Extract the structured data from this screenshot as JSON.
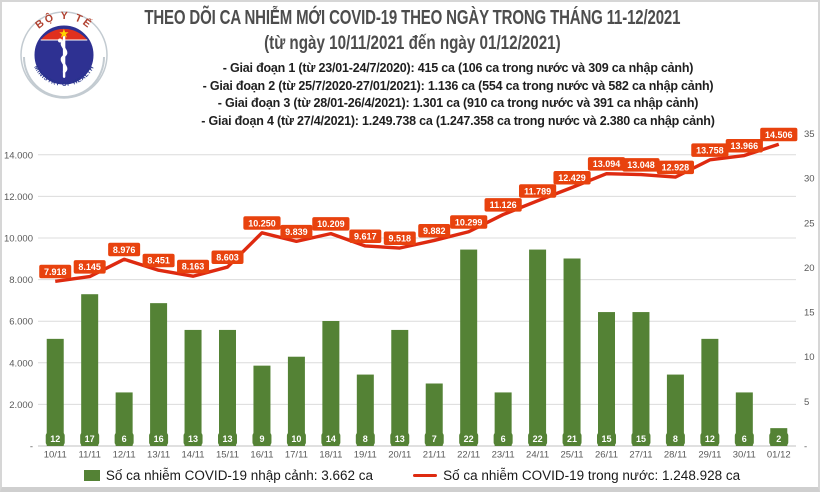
{
  "header": {
    "title": "THEO DÕI CA NHIỄM MỚI COVID-19 THEO NGÀY TRONG THÁNG 11-12/2021",
    "subtitle": "(từ ngày 10/11/2021 đến ngày 01/12/2021)",
    "phases": [
      "- Giai đoạn 1 (từ 23/01-24/7/2020): 415 ca (106 ca trong nước và 309 ca nhập cảnh)",
      "- Giai đoạn 2 (từ 25/7/2020-27/01/2021): 1.136 ca (554 ca trong nước và 582 ca nhập cảnh)",
      "- Giai đoạn 3 (từ 28/01-26/4/2021): 1.301 ca (910 ca trong nước và 391 ca nhập cảnh)",
      "- Giai đoạn 4 (từ 27/4/2021): 1.249.738 ca (1.247.358 ca trong nước và 2.380 ca nhập cảnh)"
    ],
    "logo": {
      "top_text": "BỘ Y TẾ",
      "bottom_text": "MINISTRY OF HEALTH"
    }
  },
  "colors": {
    "bar_green": "#548235",
    "line_red": "#de2a10",
    "label_red_bg": "#e8420e",
    "grid": "#dcdcdc",
    "axis_text": "#595959"
  },
  "chart_data": {
    "type": "bar",
    "subtype": "bar+line dual axis combo",
    "categories": [
      "10/11",
      "11/11",
      "12/11",
      "13/11",
      "14/11",
      "15/11",
      "16/11",
      "17/11",
      "18/11",
      "19/11",
      "20/11",
      "21/11",
      "22/11",
      "23/11",
      "24/11",
      "25/11",
      "26/11",
      "27/11",
      "28/11",
      "29/11",
      "30/11",
      "01/12"
    ],
    "series": [
      {
        "name": "Số ca nhiễm COVID-19 nhập cảnh",
        "type": "bar",
        "axis": "right",
        "color": "#548235",
        "values": [
          12,
          17,
          6,
          16,
          13,
          13,
          9,
          10,
          14,
          8,
          13,
          7,
          22,
          6,
          22,
          21,
          15,
          15,
          8,
          12,
          6,
          2
        ]
      },
      {
        "name": "Số ca nhiễm COVID-19 trong nước",
        "type": "line",
        "axis": "left",
        "color": "#de2a10",
        "label_bg": "#e8420e",
        "values": [
          7918,
          8145,
          8976,
          8451,
          8163,
          8603,
          10250,
          9839,
          10209,
          9617,
          9518,
          9882,
          10299,
          11126,
          11789,
          12429,
          13094,
          13048,
          12928,
          13758,
          13966,
          14506
        ]
      }
    ],
    "left_axis": {
      "min": 0,
      "max": 14000,
      "step": 2000,
      "tick_labels": [
        "-",
        "2.000",
        "4.000",
        "6.000",
        "8.000",
        "10.000",
        "12.000",
        "14.000"
      ]
    },
    "right_axis": {
      "min": 0,
      "max": 35,
      "step": 5,
      "tick_labels": [
        "-",
        "5",
        "10",
        "15",
        "20",
        "25",
        "30",
        "35"
      ]
    },
    "grid": true,
    "legend_position": "bottom",
    "legend": [
      {
        "swatch": "bar",
        "color": "#548235",
        "label": "Số ca nhiễm COVID-19 nhập cảnh: 3.662 ca"
      },
      {
        "swatch": "line",
        "color": "#de2a10",
        "label": "Số ca nhiễm COVID-19 trong nước: 1.248.928 ca"
      }
    ]
  }
}
